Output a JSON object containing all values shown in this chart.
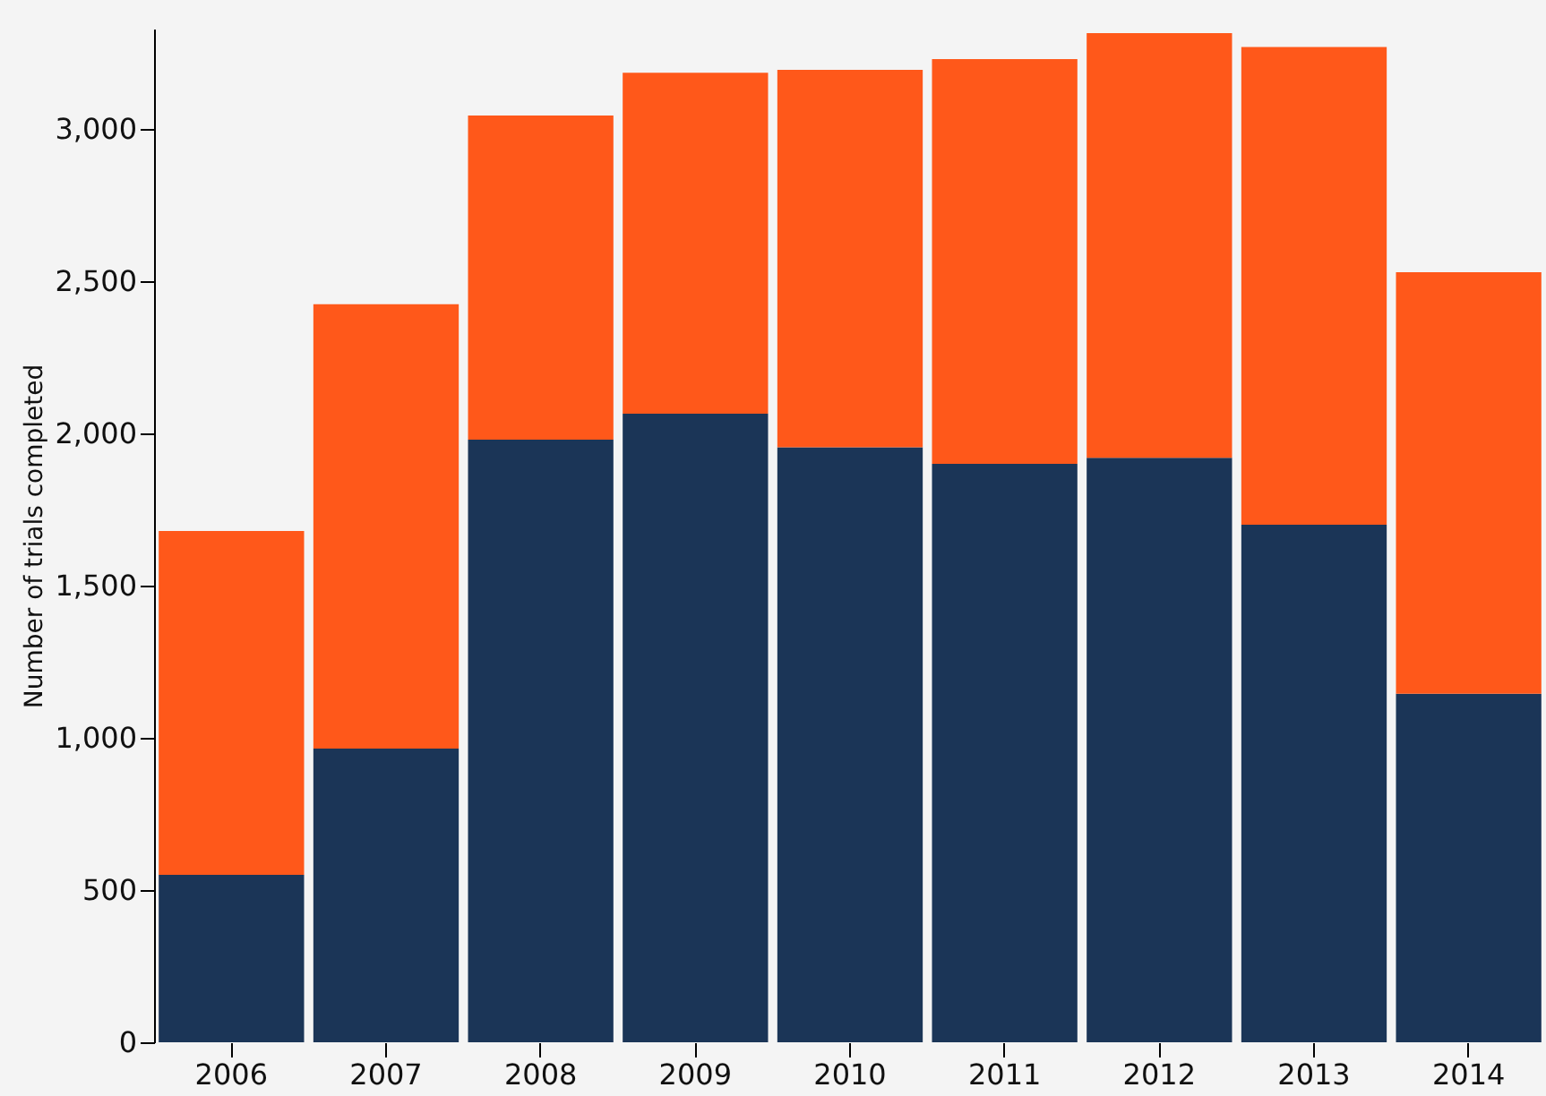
{
  "chart_data": {
    "type": "bar",
    "stacked": true,
    "ylabel": "Number of trials completed",
    "categories": [
      "2006",
      "2007",
      "2008",
      "2009",
      "2010",
      "2011",
      "2012",
      "2013",
      "2014"
    ],
    "series": [
      {
        "color": "#1b3557",
        "values": [
          550,
          965,
          1980,
          2065,
          1955,
          1900,
          1920,
          1700,
          1145
        ]
      },
      {
        "color": "#ff581a",
        "values": [
          1130,
          1460,
          1065,
          1120,
          1240,
          1330,
          1395,
          1570,
          1385
        ]
      }
    ],
    "ylim": [
      0,
      3330
    ],
    "yticks": [
      0,
      500,
      {
        "value": 1000,
        "label": "1,000"
      },
      {
        "value": 1500,
        "label": "1,500"
      },
      {
        "value": 2000,
        "label": "2,000"
      },
      {
        "value": 2500,
        "label": "2,500"
      },
      {
        "value": 3000,
        "label": "3,000"
      }
    ],
    "grid": false,
    "legend": false
  }
}
